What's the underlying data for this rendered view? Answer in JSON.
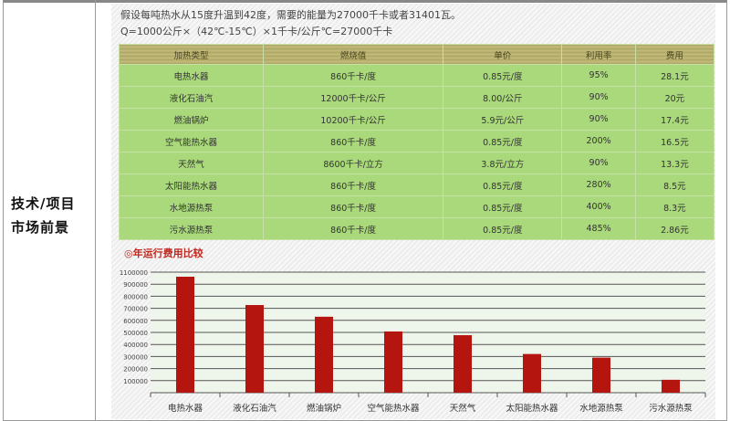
{
  "left_label_line1": "技术/项目",
  "left_label_line2": "市场前景",
  "intro": {
    "line1": "假设每吨热水从15度升温到42度，需要的能量为27000千卡或者31401瓦。",
    "line2": "Q=1000公斤×（42℃-15℃）×1千卡/公斤℃=27000千卡"
  },
  "table": {
    "headers": [
      "加热类型",
      "燃烧值",
      "单价",
      "利用率",
      "费用"
    ],
    "rows": [
      [
        "电热水器",
        "860千卡/度",
        "0.85元/度",
        "95%",
        "28.1元"
      ],
      [
        "液化石油汽",
        "12000千卡/公斤",
        "8.00/公斤",
        "90%",
        "20元"
      ],
      [
        "燃油锅炉",
        "10200千卡/公斤",
        "5.9元/公斤",
        "90%",
        "17.4元"
      ],
      [
        "空气能热水器",
        "860千卡/度",
        "0.85元/度",
        "200%",
        "16.5元"
      ],
      [
        "天然气",
        "8600千卡/立方",
        "3.8元/立方",
        "90%",
        "13.3元"
      ],
      [
        "太阳能热水器",
        "860千卡/度",
        "0.85元/度",
        "280%",
        "8.5元"
      ],
      [
        "水地源热泵",
        "860千卡/度",
        "0.85元/度",
        "400%",
        "8.3元"
      ],
      [
        "污水源热泵",
        "860千卡/度",
        "0.85元/度",
        "485%",
        "2.86元"
      ]
    ]
  },
  "chart_data": {
    "type": "bar",
    "title": "◎年运行费用比较",
    "categories": [
      "电热水器",
      "液化石油汽",
      "燃油锅炉",
      "空气能热水器",
      "天然气",
      "太阳能热水器",
      "水地源热泵",
      "污水源热泵"
    ],
    "values": [
      962000,
      727000,
      630000,
      508000,
      477000,
      321000,
      291000,
      107000
    ],
    "yticks": [
      "100000",
      "200000",
      "300000",
      "400000",
      "500000",
      "600000",
      "700000",
      "800000",
      "900000",
      "1100000"
    ],
    "ylim": [
      0,
      1000000
    ],
    "grid": true,
    "bar_color": "#b5150f"
  }
}
